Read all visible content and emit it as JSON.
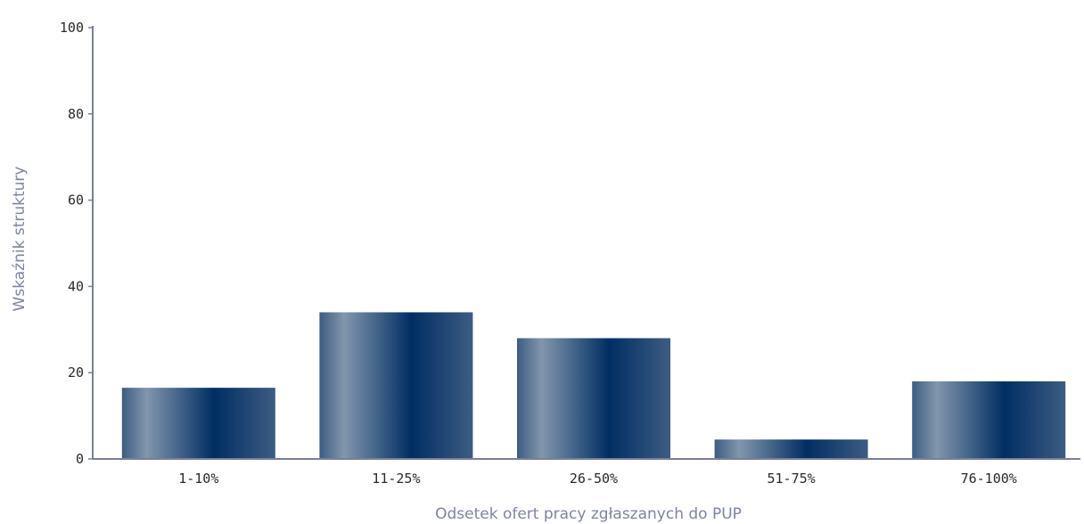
{
  "chart_data": {
    "type": "bar",
    "categories": [
      "1-10%",
      "11-25%",
      "26-50%",
      "51-75%",
      "76-100%"
    ],
    "values": [
      16.5,
      34,
      28,
      4.5,
      18
    ],
    "xlabel": "Odsetek ofert pracy zgłaszanych do PUP",
    "ylabel": "Wskaźnik struktury",
    "ylim": [
      0,
      100
    ],
    "yticks": [
      0,
      20,
      40,
      60,
      80,
      100
    ],
    "grid": false,
    "legend": "none",
    "colors": {
      "bar_dark": "#002e63",
      "bar_light": "#8296ad",
      "bar_mid": "#3d5c82",
      "axis": "#7a7f96",
      "tick_text": "#2a2a2a",
      "title_text": "#7e84a3"
    }
  }
}
